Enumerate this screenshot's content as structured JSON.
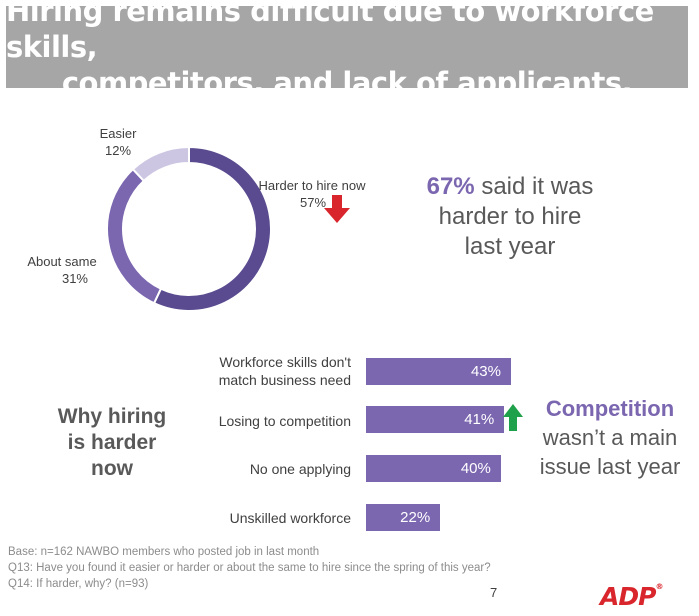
{
  "header": {
    "title_line1": "Hiring remains difficult due to workforce skills,",
    "title_line2": "competitors, and lack of applicants."
  },
  "chart_data": [
    {
      "type": "pie",
      "categories": [
        "Harder to hire now",
        "About same",
        "Easier"
      ],
      "values": [
        57,
        31,
        12
      ],
      "value_labels": [
        "57%",
        "31%",
        "12%"
      ],
      "colors": [
        "#5a4a8f",
        "#7b66b0",
        "#cdc6e3"
      ]
    },
    {
      "type": "bar",
      "orientation": "horizontal",
      "categories": [
        "Workforce skills don't match business need",
        "Losing to competition",
        "No one applying",
        "Unskilled workforce"
      ],
      "values": [
        43,
        41,
        40,
        22
      ],
      "value_labels": [
        "43%",
        "41%",
        "40%",
        "22%"
      ],
      "color": "#7b66b0"
    }
  ],
  "donut_labels": {
    "harder_name": "Harder to hire now",
    "harder_value": "57%",
    "same_name": "About same",
    "same_value": "31%",
    "easier_name": "Easier",
    "easier_value": "12%"
  },
  "callout": {
    "percent": "67%",
    "rest_line1": "said it was",
    "line2": "harder to hire",
    "line3": "last year"
  },
  "why_label": {
    "line1": "Why hiring",
    "line2": "is harder",
    "line3": "now"
  },
  "bar_labels": {
    "skills_line1": "Workforce skills don't",
    "skills_line2": "match business need",
    "competition": "Losing to competition",
    "applying": "No one applying",
    "unskilled": "Unskilled workforce"
  },
  "competition_note": {
    "highlight": "Competition",
    "line2": "wasn’t a main",
    "line3": "issue last year"
  },
  "footnotes": {
    "base": "Base: n=162 NAWBO members who posted job in last month",
    "q13": "Q13: Have you found it easier or harder or about the same to hire since the spring of this year?",
    "q14": "Q14: If harder, why? (n=93)"
  },
  "page_number": "7",
  "logo": {
    "text": "ADP"
  },
  "icons": {
    "down": "down-arrow-icon",
    "up": "up-arrow-icon"
  },
  "colors": {
    "accent": "#7b66b0",
    "dark_purple": "#5a4a8f",
    "light_purple": "#cdc6e3",
    "down_arrow": "#d9262c",
    "up_arrow": "#1fa04a",
    "banner": "#a6a6a6"
  }
}
